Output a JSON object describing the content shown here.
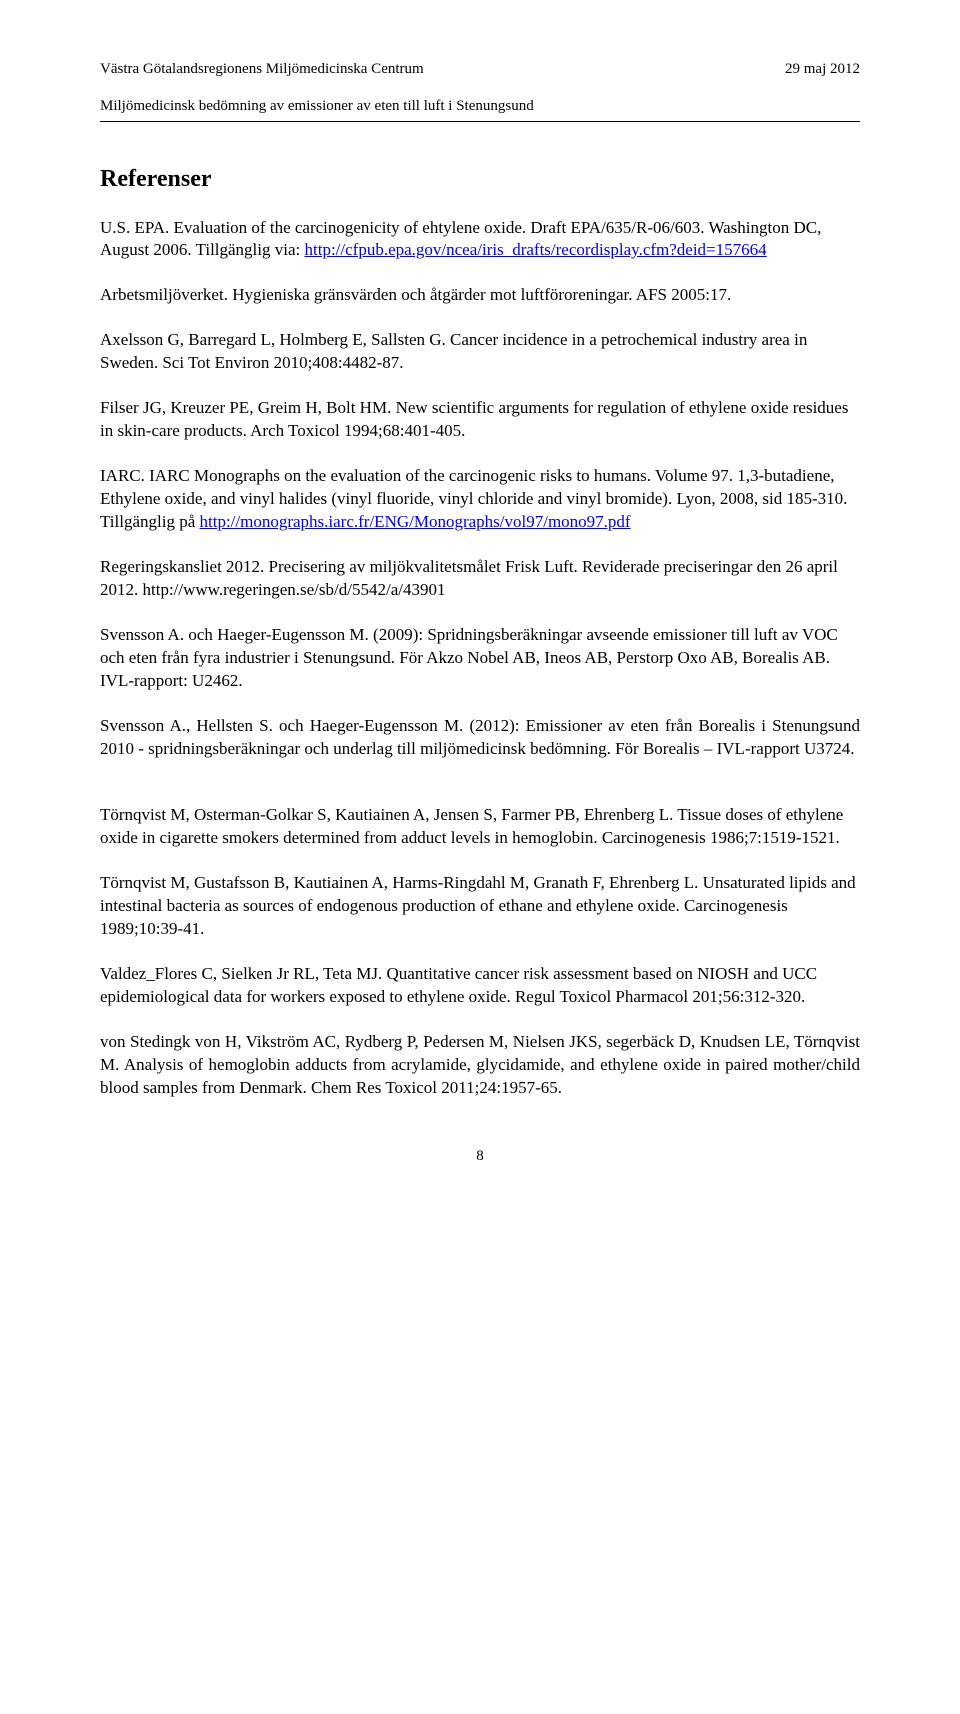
{
  "header": {
    "left": "Västra Götalandsregionens Miljömedicinska Centrum",
    "right": "29 maj 2012",
    "sub": "Miljömedicinsk bedömning av emissioner av eten till luft i Stenungsund"
  },
  "section_title": "Referenser",
  "refs": [
    {
      "pre": "U.S. EPA. Evaluation of the carcinogenicity of ehtylene oxide. Draft EPA/635/R-06/603. Washington DC, August 2006. Tillgänglig via: ",
      "link_text": "http://cfpub.epa.gov/ncea/iris_drafts/recordisplay.cfm?deid=157664",
      "post": ""
    },
    {
      "pre": "Arbetsmiljöverket. Hygieniska gränsvärden och åtgärder mot luftföroreningar. AFS 2005:17.",
      "link_text": "",
      "post": ""
    },
    {
      "pre": "Axelsson G, Barregard L, Holmberg E, Sallsten G. Cancer incidence in a petrochemical industry area in Sweden. Sci Tot Environ 2010;408:4482-87.",
      "link_text": "",
      "post": ""
    },
    {
      "pre": "Filser JG, Kreuzer PE, Greim H, Bolt HM. New scientific arguments for regulation of ethylene oxide residues in skin-care products. Arch Toxicol 1994;68:401-405.",
      "link_text": "",
      "post": ""
    },
    {
      "pre": "IARC. IARC Monographs on the evaluation of the carcinogenic risks to humans. Volume 97. 1,3-butadiene, Ethylene oxide, and vinyl halides (vinyl fluoride, vinyl chloride and vinyl bromide). Lyon, 2008, sid 185-310. Tillgänglig på ",
      "link_text": "http://monographs.iarc.fr/ENG/Monographs/vol97/mono97.pdf",
      "post": ""
    },
    {
      "pre": "Regeringskansliet 2012. Precisering av miljökvalitetsmålet Frisk Luft. Reviderade preciseringar den 26 april 2012.  http://www.regeringen.se/sb/d/5542/a/43901",
      "link_text": "",
      "post": ""
    },
    {
      "pre": "Svensson A. och Haeger-Eugensson M. (2009): Spridningsberäkningar avseende emissioner till luft av VOC och eten från fyra industrier i Stenungsund. För Akzo Nobel AB, Ineos AB, Perstorp Oxo AB, Borealis AB. IVL-rapport: U2462.",
      "link_text": "",
      "post": ""
    },
    {
      "pre": "Svensson A., Hellsten S. och Haeger-Eugensson M. (2012): Emissioner av eten från Borealis i Stenungsund 2010 - spridningsberäkningar och underlag till miljömedicinsk bedömning. För Borealis – IVL-rapport U3724.",
      "link_text": "",
      "post": "",
      "justify": true,
      "extra_gap": true
    },
    {
      "pre": "Törnqvist M, Osterman-Golkar S, Kautiainen A, Jensen S, Farmer PB, Ehrenberg L. Tissue doses of ethylene oxide in cigarette smokers determined from adduct levels in hemoglobin. Carcinogenesis 1986;7:1519-1521.",
      "link_text": "",
      "post": ""
    },
    {
      "pre": "Törnqvist M, Gustafsson B, Kautiainen A, Harms-Ringdahl M, Granath F, Ehrenberg L. Unsaturated lipids and intestinal bacteria as sources of endogenous production of ethane and ethylene oxide. Carcinogenesis 1989;10:39-41.",
      "link_text": "",
      "post": ""
    },
    {
      "pre": "Valdez_Flores C, Sielken Jr RL, Teta MJ. Quantitative cancer risk assessment based on NIOSH and UCC epidemiological data for workers exposed to ethylene oxide.  Regul Toxicol Pharmacol 201;56:312-320.",
      "link_text": "",
      "post": ""
    },
    {
      "pre": "von Stedingk von H, Vikström AC, Rydberg P, Pedersen M, Nielsen JKS, segerbäck D, Knudsen LE, Törnqvist M. Analysis of hemoglobin adducts from acrylamide, glycidamide, and ethylene oxide in paired mother/child blood samples from Denmark. Chem Res Toxicol 2011;24:1957-65.",
      "link_text": "",
      "post": "",
      "justify": true
    }
  ],
  "page_number": "8"
}
